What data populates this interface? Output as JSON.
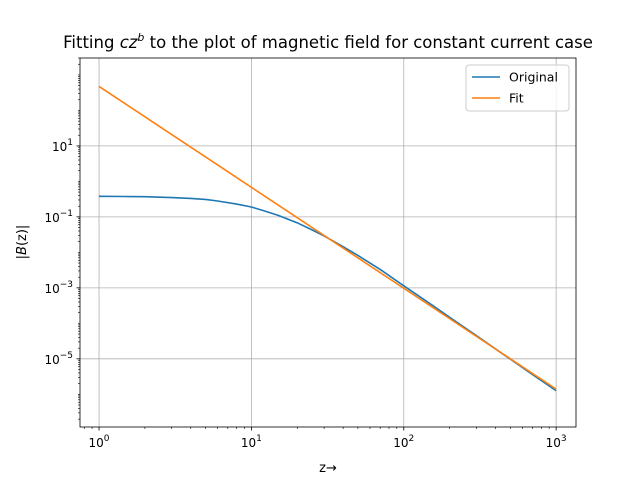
{
  "chart_data": {
    "type": "line",
    "title": {
      "prefix": "Fitting ",
      "math_base": "cz",
      "math_sup": "b",
      "suffix": " to the plot of magnetic field for constant current case"
    },
    "xlabel": "z→",
    "ylabel": {
      "prefix": "|",
      "math": "B",
      "paren": "(z)",
      "suffix": "|"
    },
    "xscale": "log",
    "yscale": "log",
    "xlim": [
      0.75,
      1350
    ],
    "ylim": [
      1.2e-07,
      3000
    ],
    "grid": true,
    "legend_position": "top-right",
    "x_ticks": [
      {
        "value": 1,
        "base": "10",
        "exp": "0"
      },
      {
        "value": 10,
        "base": "10",
        "exp": "1"
      },
      {
        "value": 100,
        "base": "10",
        "exp": "2"
      },
      {
        "value": 1000,
        "base": "10",
        "exp": "3"
      }
    ],
    "y_ticks": [
      {
        "value": 1e-05,
        "base": "10",
        "exp": "−5"
      },
      {
        "value": 0.001,
        "base": "10",
        "exp": "−3"
      },
      {
        "value": 0.1,
        "base": "10",
        "exp": "−1"
      },
      {
        "value": 10,
        "base": "10",
        "exp": "1"
      }
    ],
    "series": [
      {
        "name": "Original",
        "color": "#1f77b4",
        "x": [
          1,
          1.5,
          2,
          3,
          4,
          5,
          6,
          8,
          10,
          12,
          15,
          20,
          25,
          30,
          40,
          50,
          70,
          100,
          150,
          200,
          300,
          400,
          500,
          700,
          1000
        ],
        "y": [
          0.38,
          0.375,
          0.37,
          0.35,
          0.33,
          0.31,
          0.28,
          0.23,
          0.19,
          0.15,
          0.11,
          0.068,
          0.043,
          0.029,
          0.0145,
          0.0082,
          0.0033,
          0.00114,
          0.00035,
          0.000148,
          4.5e-05,
          1.9e-05,
          9.8e-06,
          3.6e-06,
          1.26e-06
        ]
      },
      {
        "name": "Fit",
        "color": "#ff7f0e",
        "x": [
          1,
          1000
        ],
        "y": [
          475,
          1.4e-06
        ]
      }
    ]
  }
}
